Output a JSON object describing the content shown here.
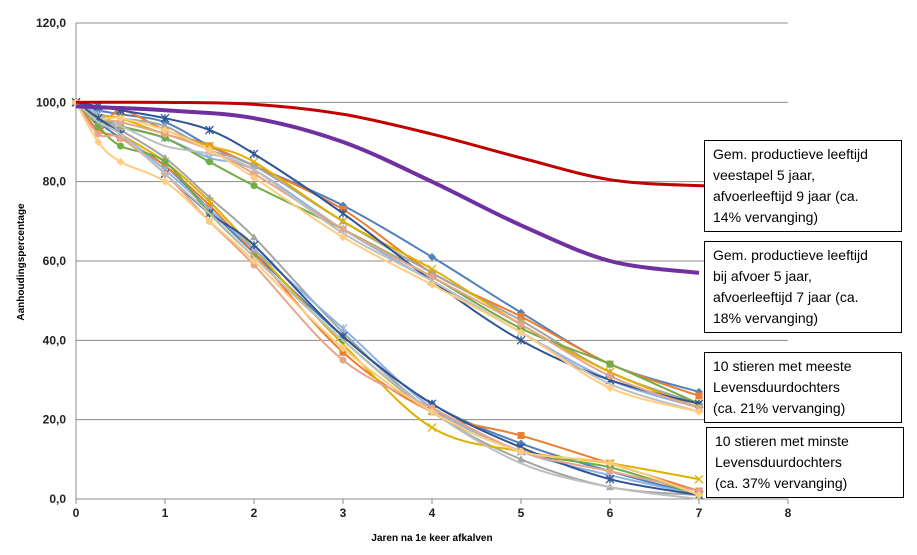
{
  "chart_data": {
    "type": "line",
    "xlabel": "Jaren na 1e keer afkalven",
    "ylabel": "Aanhoudingspercentage",
    "xlim": [
      0,
      8
    ],
    "ylim": [
      0,
      120
    ],
    "x_ticks": [
      "0",
      "1",
      "2",
      "3",
      "4",
      "5",
      "6",
      "7",
      "8"
    ],
    "y_ticks": [
      "0,0",
      "20,0",
      "40,0",
      "60,0",
      "80,0",
      "100,0",
      "120,0"
    ],
    "grid": "horizontal",
    "x": [
      0,
      0.25,
      0.5,
      1,
      1.5,
      2,
      3,
      4,
      5,
      6,
      7
    ],
    "reference_lines": [
      {
        "color": "#C00000",
        "x": [
          0,
          1,
          2,
          3,
          4,
          5,
          6,
          7,
          8
        ],
        "values": [
          100,
          100,
          99.5,
          97,
          92,
          86,
          80.5,
          79,
          79
        ]
      },
      {
        "color": "#7030A0",
        "x": [
          0,
          1,
          2,
          3,
          4,
          5,
          6,
          7
        ],
        "values": [
          99,
          98,
          96,
          90,
          80,
          69,
          60,
          57
        ]
      }
    ],
    "series_groups": [
      {
        "group": "meeste",
        "series": [
          {
            "color": "#4F81BD",
            "marker": "diamond",
            "values": [
              100,
              98,
              97,
              95,
              89,
              84,
              74,
              61,
              47,
              34,
              27
            ]
          },
          {
            "color": "#ED7D31",
            "marker": "square",
            "values": [
              100,
              93,
              98,
              93,
              89,
              84,
              73,
              57,
              46,
              34,
              26
            ]
          },
          {
            "color": "#A5A5A5",
            "marker": "triangle",
            "values": [
              100,
              97,
              96,
              94,
              88,
              84,
              70,
              57,
              45,
              32,
              24
            ]
          },
          {
            "color": "#E0B000",
            "marker": "x",
            "values": [
              100,
              97,
              96,
              92,
              89,
              85,
              70,
              58,
              44,
              32,
              23
            ]
          },
          {
            "color": "#8EB4E3",
            "marker": "asterisk",
            "values": [
              100,
              97,
              94,
              91,
              86,
              83,
              68,
              55,
              42,
              30,
              23
            ]
          },
          {
            "color": "#70AD47",
            "marker": "circle",
            "values": [
              100,
              96,
              94,
              91,
              85,
              79,
              68,
              56,
              43,
              34,
              24
            ]
          },
          {
            "color": "#2F5597",
            "marker": "asterisk",
            "values": [
              100,
              99,
              98,
              96,
              93,
              87,
              72,
              55,
              40,
              30,
              24
            ]
          },
          {
            "color": "#E6A58A",
            "marker": "circle",
            "values": [
              100,
              96,
              95,
              92,
              88,
              82,
              68,
              56,
              44,
              31,
              23
            ]
          },
          {
            "color": "#BFBFBF",
            "marker": "none",
            "values": [
              100,
              95,
              94,
              89,
              87,
              83,
              67,
              55,
              42,
              29,
              22
            ]
          },
          {
            "color": "#FFCC80",
            "marker": "diamond",
            "values": [
              100,
              96,
              96,
              93,
              88,
              81,
              66,
              54,
              42,
              28,
              22
            ]
          }
        ]
      },
      {
        "group": "minste",
        "series": [
          {
            "color": "#4F81BD",
            "marker": "diamond",
            "values": [
              100,
              95,
              91,
              84,
              73,
              62,
              41,
              24,
              14,
              7,
              1
            ]
          },
          {
            "color": "#ED7D31",
            "marker": "square",
            "values": [
              100,
              93,
              91,
              84,
              74,
              62,
              37,
              22,
              16,
              9,
              2
            ]
          },
          {
            "color": "#A5A5A5",
            "marker": "triangle",
            "values": [
              100,
              96,
              93,
              86,
              76,
              66,
              42,
              22,
              10,
              3,
              1
            ]
          },
          {
            "color": "#E0B000",
            "marker": "x",
            "values": [
              100,
              96,
              92,
              85,
              75,
              63,
              39,
              18,
              12,
              9,
              5
            ]
          },
          {
            "color": "#8EB4E3",
            "marker": "asterisk",
            "values": [
              100,
              95,
              92,
              83,
              73,
              63,
              43,
              23,
              12,
              6,
              1
            ]
          },
          {
            "color": "#70AD47",
            "marker": "circle",
            "values": [
              100,
              94,
              89,
              85,
              72,
              61,
              40,
              22,
              12,
              8,
              1
            ]
          },
          {
            "color": "#2F5597",
            "marker": "asterisk",
            "values": [
              100,
              96,
              92,
              82,
              72,
              64,
              41,
              24,
              13,
              5,
              1
            ]
          },
          {
            "color": "#E6A58A",
            "marker": "circle",
            "values": [
              100,
              92,
              91,
              82,
              70,
              59,
              35,
              23,
              12,
              7,
              2
            ]
          },
          {
            "color": "#BFBFBF",
            "marker": "none",
            "values": [
              100,
              95,
              92,
              82,
              72,
              61,
              40,
              22,
              9,
              3,
              0
            ]
          },
          {
            "color": "#FFCC80",
            "marker": "diamond",
            "values": [
              100,
              90,
              85,
              80,
              70,
              60,
              38,
              22,
              12,
              9,
              1
            ]
          }
        ]
      }
    ],
    "annotations": [
      [
        "Gem. productieve leeftijd",
        "veestapel 5 jaar,",
        "afvoerleeftijd 9 jaar (ca.",
        "14% vervanging)"
      ],
      [
        "Gem. productieve leeftijd",
        "bij afvoer 5 jaar,",
        "afvoerleeftijd 7 jaar (ca.",
        "18% vervanging)"
      ],
      [
        "10 stieren met meeste",
        "Levensduurdochters",
        "(ca. 21% vervanging)"
      ],
      [
        "10 stieren met minste",
        "Levensduurdochters",
        "(ca. 37% vervanging)"
      ]
    ]
  }
}
